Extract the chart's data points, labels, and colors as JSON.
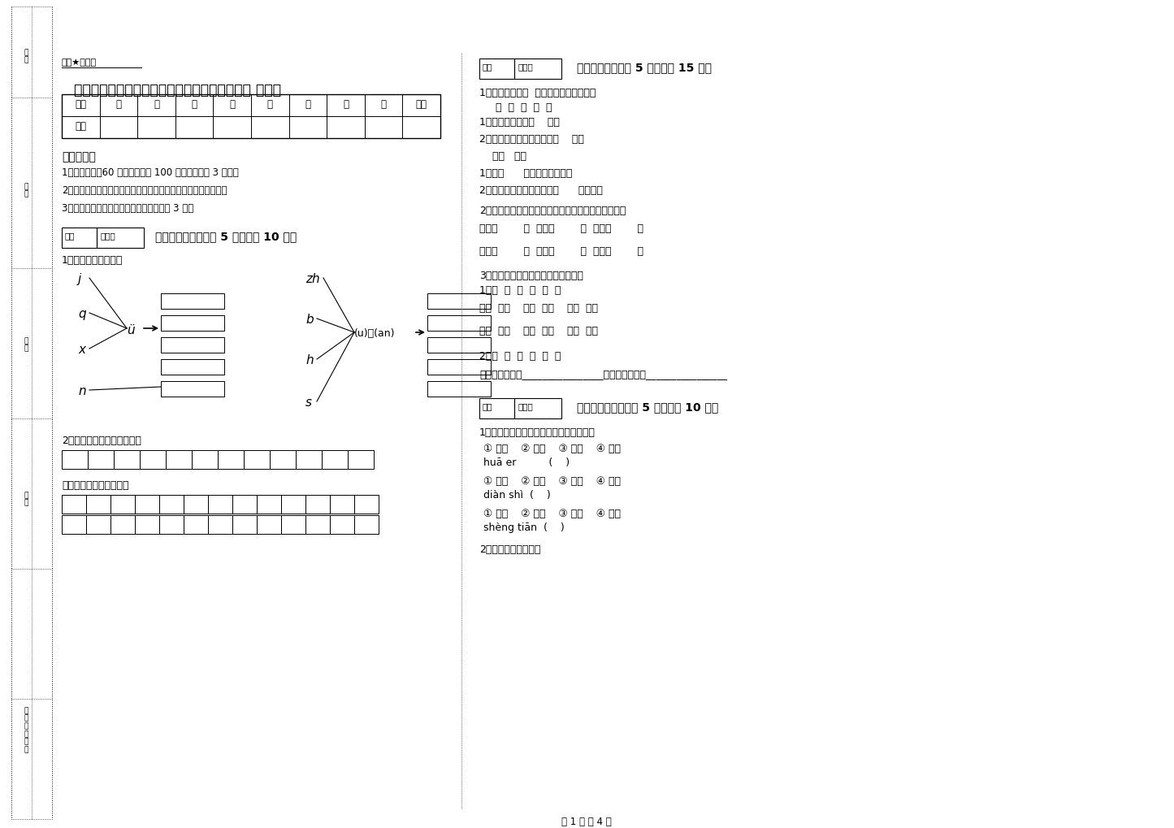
{
  "title": "云南省重点小学一年级语文下学期每周一练试卷 附解析",
  "secret_label": "绝密★启用前",
  "bg_color": "#ffffff",
  "text_color": "#000000",
  "page_footer": "第 1 页 共 4 页",
  "left_sidebar_labels": [
    "考号",
    "姓名",
    "班级",
    "学校",
    "乡镇（街道）"
  ],
  "table_headers": [
    "题号",
    "一",
    "二",
    "三",
    "四",
    "五",
    "六",
    "七",
    "八",
    "总分"
  ],
  "table_row1": "得分",
  "exam_notes_title": "考试须知：",
  "exam_notes": [
    "1、考试时间：60 分钟，满分为 100 分（含卷面分 3 分）。",
    "2、请首先按要求在试卷的指定位置填写您的姓名、班级、学号。",
    "3、不要在试卷上乱写乱画，卷面不整洁扣 3 分。"
  ],
  "section1_header": "一、拼音部分（每题 5 分，共计 10 分）",
  "section1_q1": "1、我会拼，我会写。",
  "section1_q2": "2、我会按顺序默写单韵母。",
  "section1_q2b": "我也会按顺序默写声母。",
  "section2_header": "二、填空题（每题 5 分，共计 15 分）",
  "section2_q1": "1、根据句子在（  ）里填上正确的字词。",
  "section2_q1_chars": "吗  呢  呀  哦  啦",
  "section2_q1_items": [
    "1、这是怎么回事（    ）？",
    "2、小白兔，我们赶快回家（    ）！",
    "    常常   非常",
    "1、我（      ）看童话故事书。",
    "2、公园里的花很多，开得（      ）美丽。"
  ],
  "section2_q2": "2、写出意思相反的词。（不会写的字可以写拼音）。",
  "section2_q2_pairs": [
    [
      "出一（        ）",
      "小一（        ）",
      "左一（        ）"
    ],
    [
      "笑一（        ）",
      "远一（        ）",
      "上一（        ）"
    ]
  ],
  "section2_q3": "3、我会把所给的字按要求对号入座。",
  "section2_q3_chars": "1、幅  粒  条  只  杯  朵",
  "section2_q3_items": [
    "一（  ）水    一（  ）米    一（  ）画",
    "一（  ）花    一（  ）船    一（  ）羊"
  ],
  "section2_q3b_chars": "2、吹  青  尖  叫  切  岁",
  "section2_q3b": "上下结构的字有________________左右结构的字有________________",
  "section3_header": "三、识字写字（每题 5 分，共计 10 分）",
  "section3_q1": "1、把词语的序号写到拼音后面的括号里。",
  "section3_q1_items": [
    [
      "① 花朵    ② 云朵    ③ 花儿    ④ 花开",
      "huā er          (    )"
    ],
    [
      "① 电灯    ② 电话    ③ 电影    ④ 电视",
      "diàn shì  (    )"
    ],
    [
      "① 升旗    ② 升起    ③ 升高    ④ 升天",
      "shèng tiān  (    )"
    ]
  ],
  "section3_q2": "2、看拼音，写字词。",
  "score_box_label": "得分",
  "reviewer_label": "评卷人"
}
